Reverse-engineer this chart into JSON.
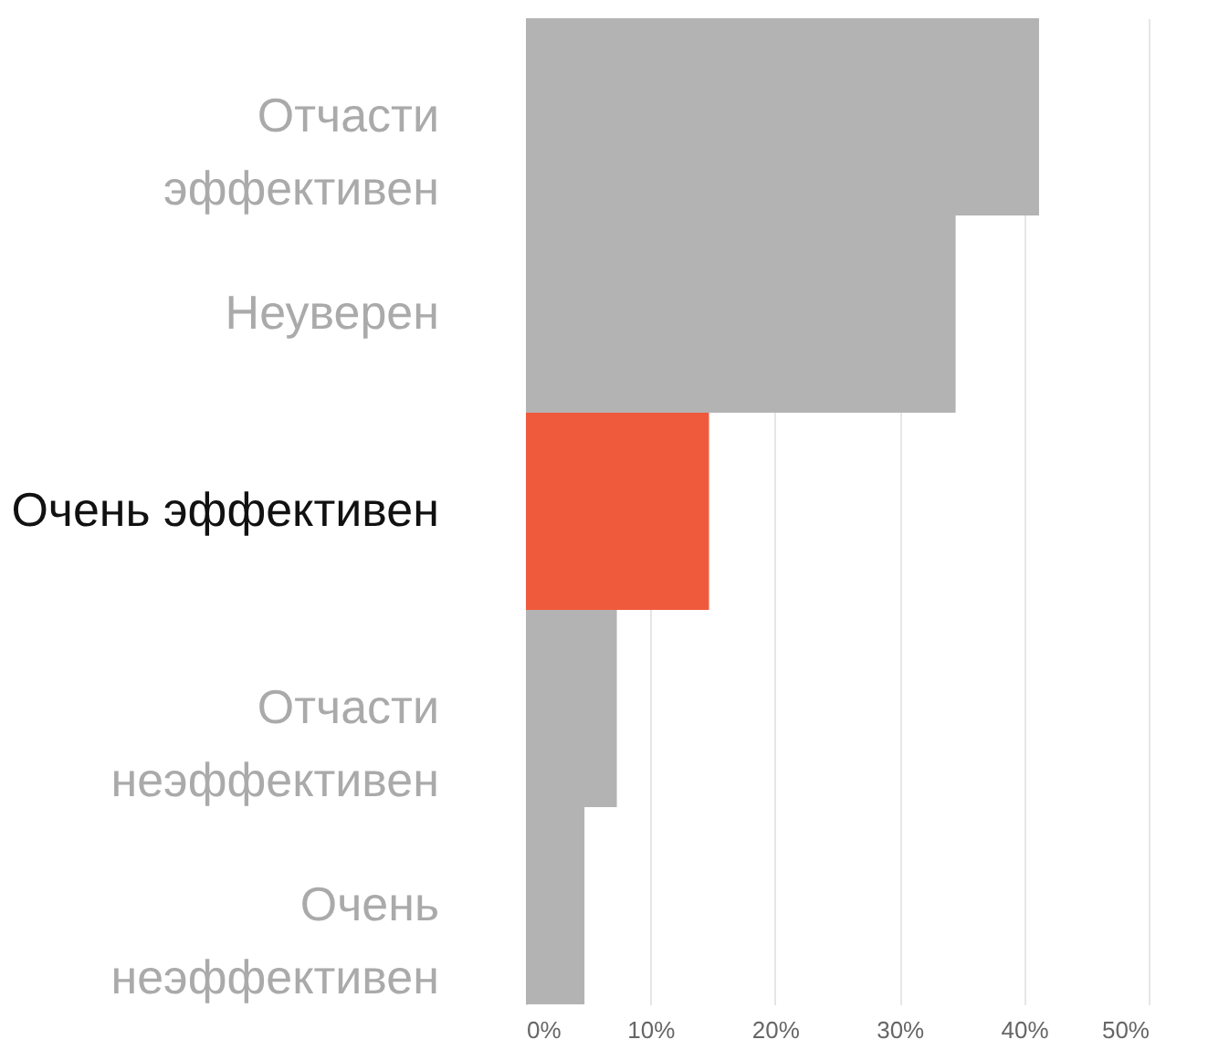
{
  "chart_data": {
    "type": "bar",
    "orientation": "horizontal",
    "categories": [
      "Отчасти\nэффективен",
      "Неуверен",
      "Очень эффективен",
      "Отчасти\nнеэффективен",
      "Очень\nнеэффективен"
    ],
    "values": [
      41.2,
      34.5,
      14.7,
      7.3,
      4.7
    ],
    "colors": [
      "#b3b3b3",
      "#b3b3b3",
      "#f05a3c",
      "#b3b3b3",
      "#b3b3b3"
    ],
    "xlim": [
      0,
      50
    ],
    "xticks": [
      {
        "value": 0,
        "label": "0%"
      },
      {
        "value": 10,
        "label": "10%"
      },
      {
        "value": 20,
        "label": "20%"
      },
      {
        "value": 30,
        "label": "30%"
      },
      {
        "value": 40,
        "label": "40%"
      },
      {
        "value": 50,
        "label": "50%"
      }
    ],
    "grid": "x"
  }
}
